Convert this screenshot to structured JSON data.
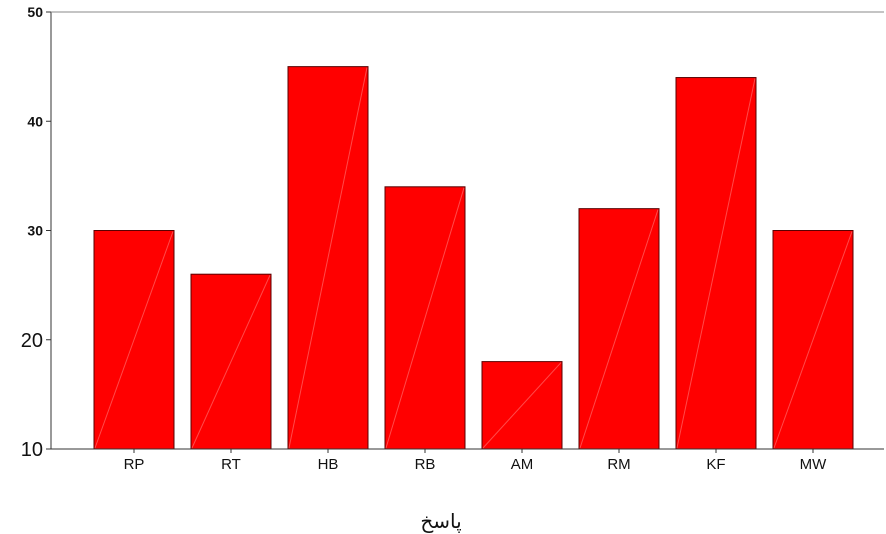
{
  "chart_data": {
    "type": "bar",
    "title": "",
    "xlabel": "پاسخ",
    "ylabel": "",
    "ylim": [
      10,
      50
    ],
    "yticks": [
      {
        "value": 50,
        "label": "50",
        "bold": true
      },
      {
        "value": 40,
        "label": "40",
        "bold": true
      },
      {
        "value": 30,
        "label": "30",
        "bold": true
      },
      {
        "value": 20,
        "label": "20",
        "bold": false
      },
      {
        "value": 10,
        "label": "10",
        "bold": false
      }
    ],
    "categories": [
      "RP",
      "RT",
      "HB",
      "RB",
      "AM",
      "RM",
      "KF",
      "MW"
    ],
    "values": [
      30,
      26,
      45,
      34,
      18,
      32,
      44,
      30
    ],
    "bar_color": "#ff0000",
    "bar_edge_color": "#5a0000",
    "grid": false,
    "legend": "none"
  }
}
